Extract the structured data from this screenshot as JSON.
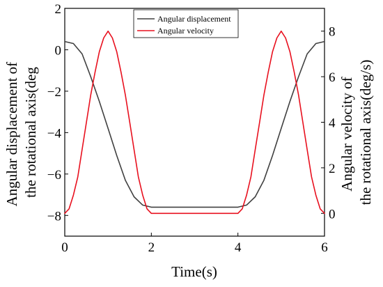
{
  "chart_data": {
    "type": "line",
    "xlabel": "Time(s)",
    "ylabel_left": [
      "Angular displacement of",
      "the rotational axis(deg"
    ],
    "ylabel_right": [
      "Angular velocity of",
      "the rotational axis(deg/s)"
    ],
    "xlim": [
      0,
      6
    ],
    "ylim_left": [
      -9,
      2
    ],
    "ylim_right": [
      -1,
      9
    ],
    "xticks": [
      "0",
      "2",
      "4",
      "6"
    ],
    "yticks_left": [
      "2",
      "0",
      "−2",
      "−4",
      "−6",
      "−8"
    ],
    "yticks_right": [
      "8",
      "6",
      "4",
      "2",
      "0"
    ],
    "grid": false,
    "legend_position": "top-center",
    "series": [
      {
        "name": "Angular displacement",
        "axis": "left",
        "color": "#404040",
        "x": [
          0,
          0.2,
          0.4,
          0.6,
          0.8,
          1.0,
          1.2,
          1.4,
          1.6,
          1.8,
          2.0,
          2.5,
          3.0,
          3.5,
          4.0,
          4.2,
          4.4,
          4.6,
          4.8,
          5.0,
          5.2,
          5.4,
          5.6,
          5.8,
          6.0
        ],
        "y": [
          0.4,
          0.3,
          -0.2,
          -1.3,
          -2.5,
          -3.8,
          -5.1,
          -6.3,
          -7.1,
          -7.5,
          -7.6,
          -7.6,
          -7.6,
          -7.6,
          -7.6,
          -7.5,
          -7.1,
          -6.3,
          -5.1,
          -3.8,
          -2.5,
          -1.3,
          -0.2,
          0.3,
          0.4
        ]
      },
      {
        "name": "Angular velocity",
        "axis": "right",
        "color": "#e8101e",
        "x": [
          0,
          0.1,
          0.2,
          0.3,
          0.4,
          0.5,
          0.6,
          0.7,
          0.8,
          0.9,
          1.0,
          1.1,
          1.2,
          1.3,
          1.4,
          1.5,
          1.6,
          1.7,
          1.8,
          1.9,
          2.0,
          2.5,
          3.0,
          3.5,
          4.0,
          4.1,
          4.2,
          4.3,
          4.4,
          4.5,
          4.6,
          4.7,
          4.8,
          4.9,
          5.0,
          5.1,
          5.2,
          5.3,
          5.4,
          5.5,
          5.6,
          5.7,
          5.8,
          5.9,
          6.0
        ],
        "y": [
          0,
          0.2,
          0.8,
          1.6,
          2.8,
          4.0,
          5.2,
          6.2,
          7.1,
          7.7,
          8.0,
          7.7,
          7.1,
          6.2,
          5.2,
          4.0,
          2.8,
          1.6,
          0.8,
          0.2,
          0,
          0,
          0,
          0,
          0,
          0.2,
          0.8,
          1.6,
          2.8,
          4.0,
          5.2,
          6.2,
          7.1,
          7.7,
          8.0,
          7.7,
          7.1,
          6.2,
          5.2,
          4.0,
          2.8,
          1.6,
          0.8,
          0.2,
          0
        ]
      }
    ]
  }
}
